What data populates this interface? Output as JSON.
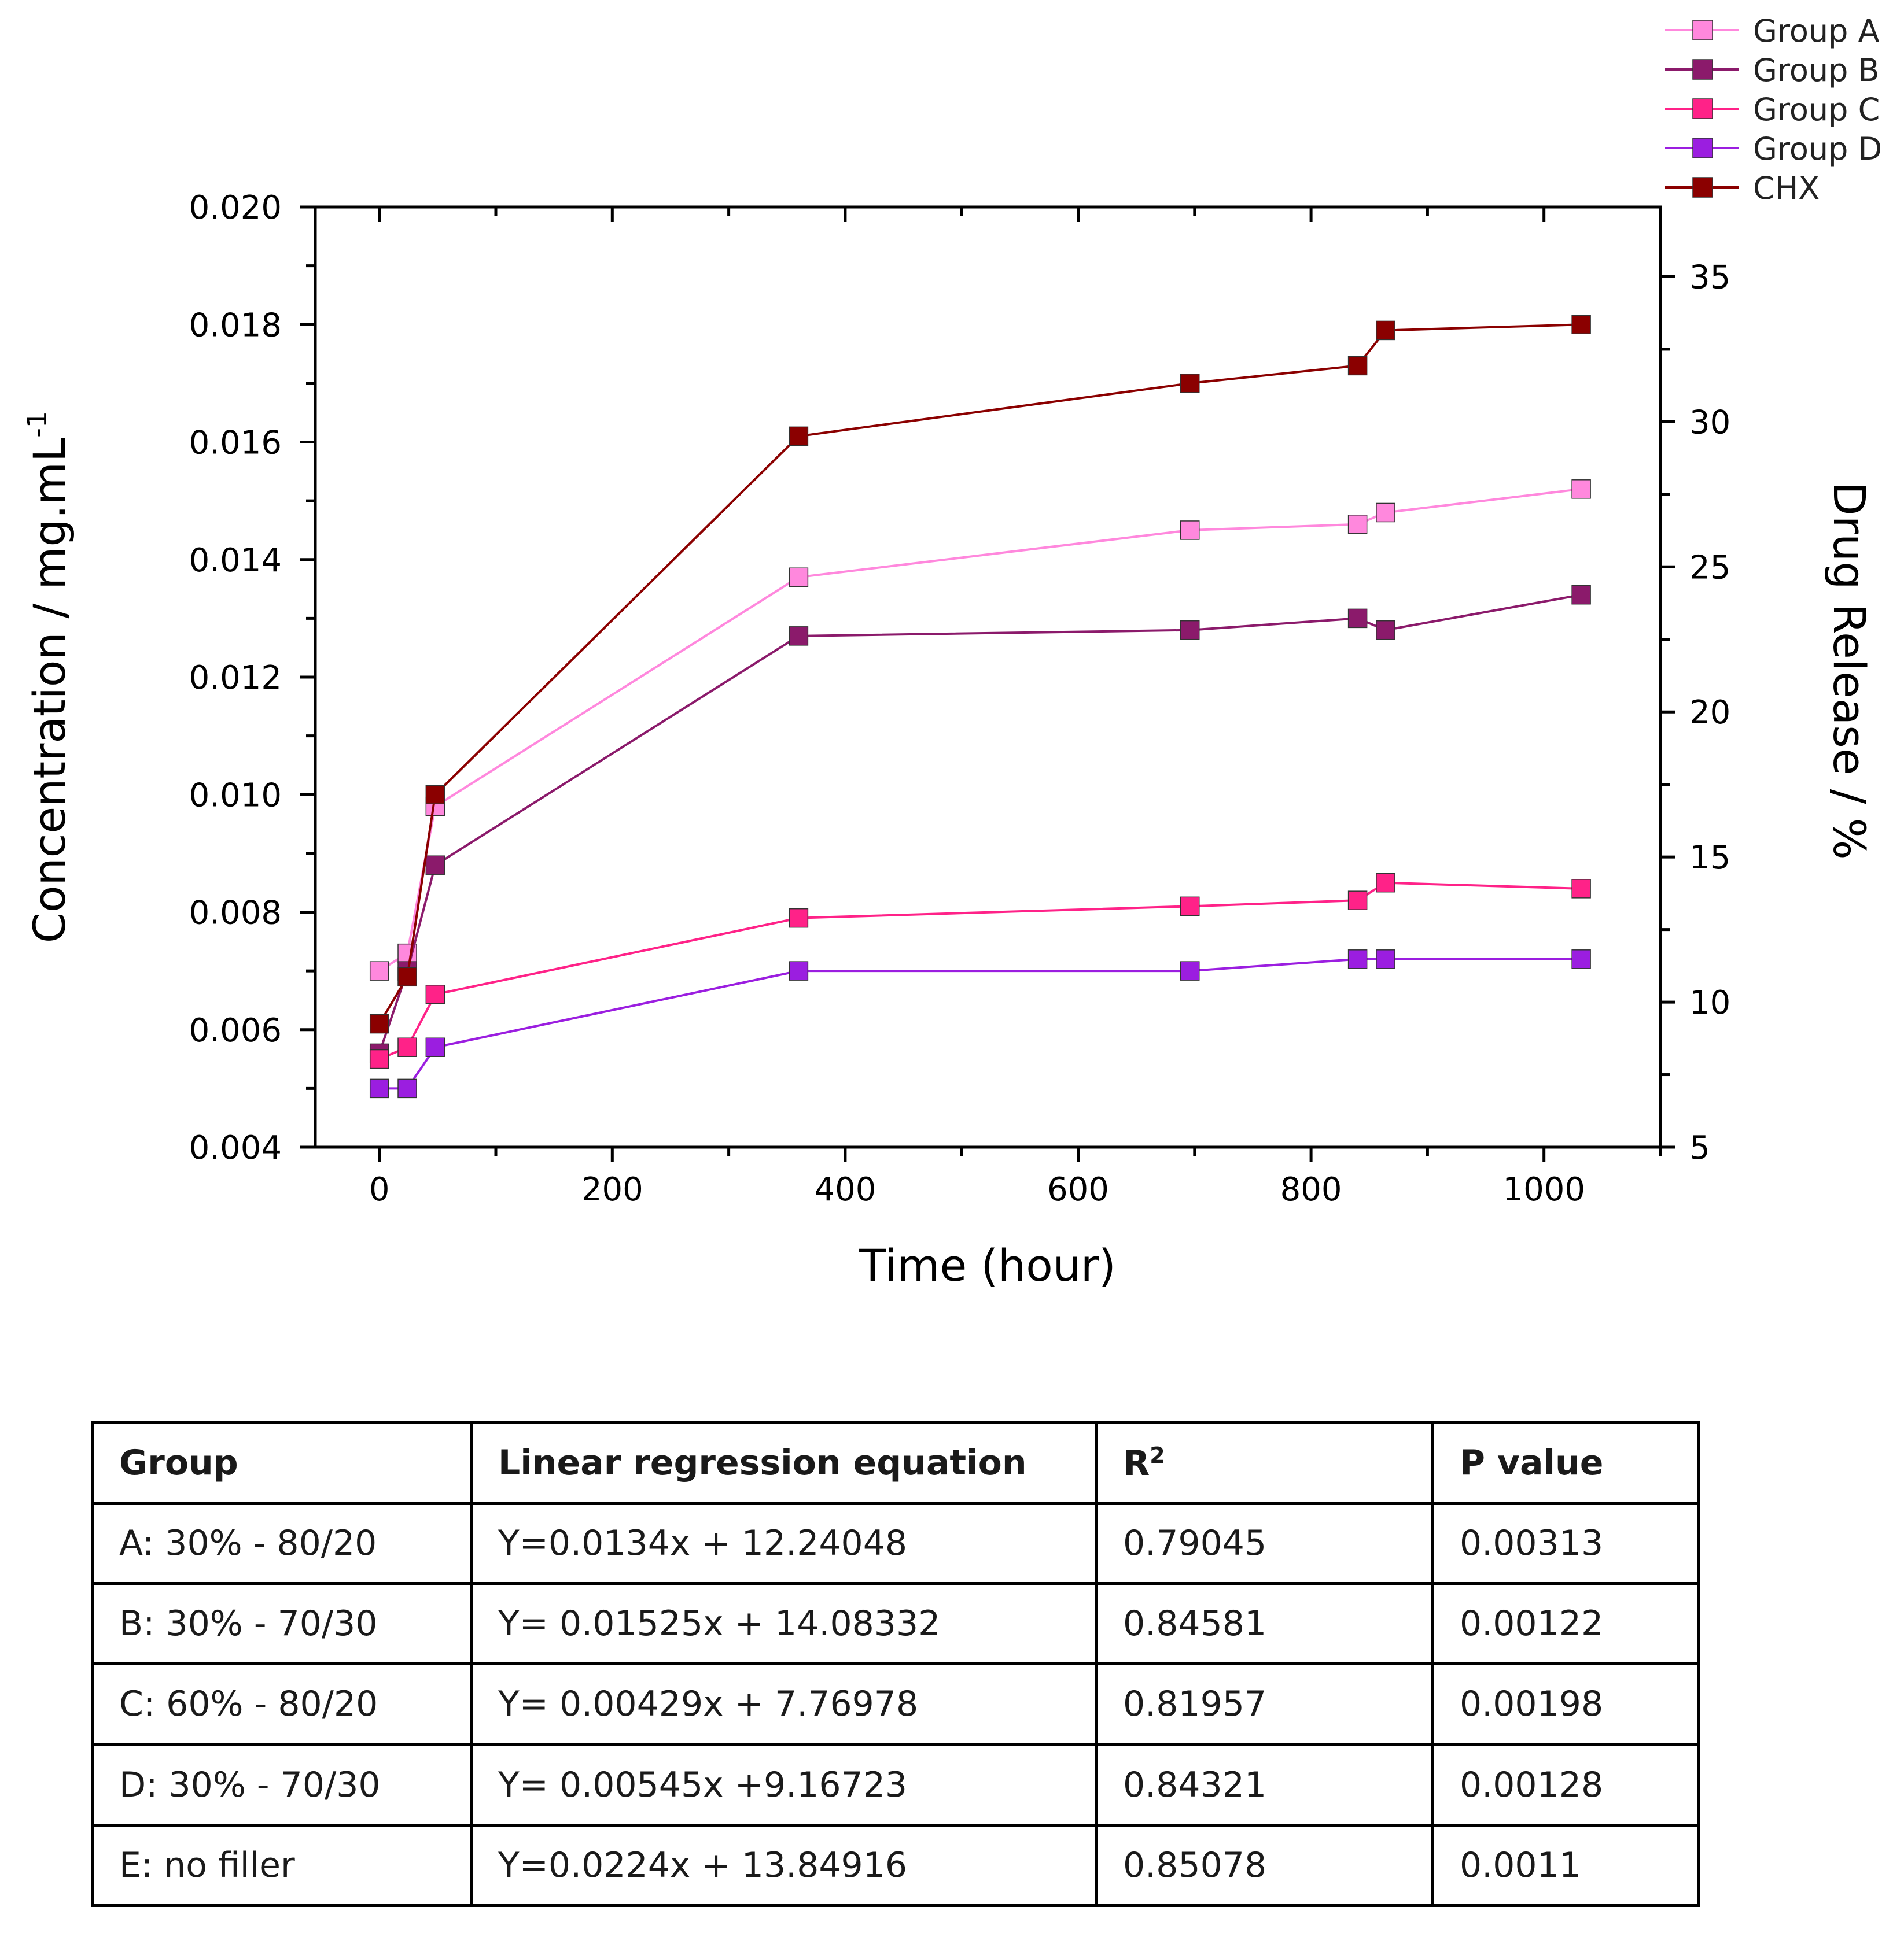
{
  "chart_data": {
    "type": "line",
    "title": "",
    "xlabel": "Time (hour)",
    "ylabel": "Concentration / mg.mL",
    "ylabel_superscript": "-1",
    "y2label": "Drug Release / %",
    "xlim": [
      -55,
      1100
    ],
    "ylim": [
      0.004,
      0.02
    ],
    "y2lim": [
      5,
      37.4
    ],
    "x_ticks": [
      0,
      200,
      400,
      600,
      800,
      1000
    ],
    "x_tick_labels": [
      "0",
      "200",
      "400",
      "600",
      "800",
      "1000"
    ],
    "y_ticks": [
      0.004,
      0.006,
      0.008,
      0.01,
      0.012,
      0.014,
      0.016,
      0.018,
      0.02
    ],
    "y_tick_labels": [
      "0.004",
      "0.006",
      "0.008",
      "0.010",
      "0.012",
      "0.014",
      "0.016",
      "0.018",
      "0.020"
    ],
    "y2_ticks": [
      5,
      10,
      15,
      20,
      25,
      30,
      35
    ],
    "y2_tick_labels": [
      "5",
      "10",
      "15",
      "20",
      "25",
      "30",
      "35"
    ],
    "grid": false,
    "legend_position": "top-right",
    "x": [
      0,
      24,
      48,
      360,
      696,
      840,
      864,
      1032
    ],
    "series": [
      {
        "name": "Group A",
        "color": "#ff88dd",
        "values": [
          0.007,
          0.0073,
          0.0098,
          0.0137,
          0.0145,
          0.0146,
          0.0148,
          0.0152
        ]
      },
      {
        "name": "Group B",
        "color": "#8b1a6b",
        "values": [
          0.0056,
          0.007,
          0.0088,
          0.0127,
          0.0128,
          0.013,
          0.0128,
          0.0134
        ]
      },
      {
        "name": "Group C",
        "color": "#ff2288",
        "values": [
          0.0055,
          0.0057,
          0.0066,
          0.0079,
          0.0081,
          0.0082,
          0.0085,
          0.0084
        ]
      },
      {
        "name": "Group D",
        "color": "#9b1ee0",
        "values": [
          0.005,
          0.005,
          0.0057,
          0.007,
          0.007,
          0.0072,
          0.0072,
          0.0072
        ]
      },
      {
        "name": "CHX",
        "color": "#8b0000",
        "values": [
          0.0061,
          0.0069,
          0.01,
          0.0161,
          0.017,
          0.0173,
          0.0179,
          0.018
        ]
      }
    ]
  },
  "table": {
    "headers": [
      "Group",
      "Linear regression equation",
      "R",
      "P value"
    ],
    "r_superscript": "2",
    "rows": [
      [
        "A: 30% - 80/20",
        "Y=0.0134x + 12.24048",
        "0.79045",
        "0.00313"
      ],
      [
        "B: 30% - 70/30",
        "Y= 0.01525x + 14.08332",
        "0.84581",
        "0.00122"
      ],
      [
        "C: 60% - 80/20",
        "Y= 0.00429x + 7.76978",
        "0.81957",
        "0.00198"
      ],
      [
        "D: 30% - 70/30",
        "Y= 0.00545x +9.16723",
        "0.84321",
        "0.00128"
      ],
      [
        "E: no filler",
        "Y=0.0224x + 13.84916",
        "0.85078",
        "0.0011"
      ]
    ]
  }
}
